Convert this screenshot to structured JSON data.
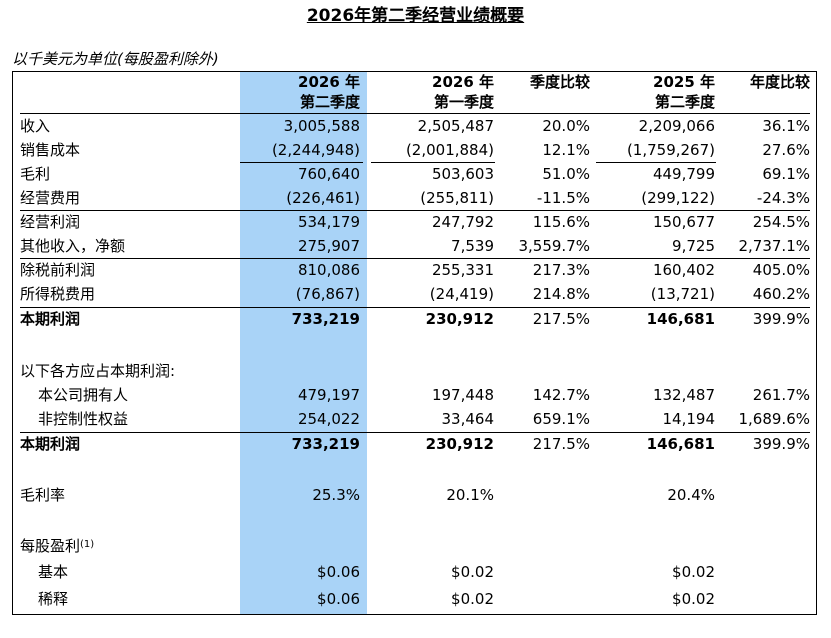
{
  "title": "2026年第二季经营业绩概要",
  "unit_note": "以千美元为单位(每股盈利除外)",
  "columns": [
    {
      "line1": "2026 年",
      "line2": "第二季度"
    },
    {
      "line1": "2026 年",
      "line2": "第一季度"
    },
    {
      "line1": "季度比较",
      "line2": ""
    },
    {
      "line1": "2025 年",
      "line2": "第二季度"
    },
    {
      "line1": "年度比较",
      "line2": ""
    }
  ],
  "rows": [
    {
      "label": "收入",
      "values": [
        "3,005,588",
        "2,505,487",
        "20.0%",
        "2,209,066",
        "36.1%"
      ]
    },
    {
      "label": "销售成本",
      "values": [
        "(2,244,948)",
        "(2,001,884)",
        "12.1%",
        "(1,759,267)",
        "27.6%"
      ]
    },
    {
      "label": "毛利",
      "values": [
        "760,640",
        "503,603",
        "51.0%",
        "449,799",
        "69.1%"
      ]
    },
    {
      "label": "经营费用",
      "values": [
        "(226,461)",
        "(255,811)",
        "-11.5%",
        "(299,122)",
        "-24.3%"
      ]
    },
    {
      "label": "经营利润",
      "values": [
        "534,179",
        "247,792",
        "115.6%",
        "150,677",
        "254.5%"
      ]
    },
    {
      "label": "其他收入，净额",
      "values": [
        "275,907",
        "7,539",
        "3,559.7%",
        "9,725",
        "2,737.1%"
      ]
    },
    {
      "label": "除税前利润",
      "values": [
        "810,086",
        "255,331",
        "217.3%",
        "160,402",
        "405.0%"
      ]
    },
    {
      "label": "所得税费用",
      "values": [
        "(76,867)",
        "(24,419)",
        "214.8%",
        "(13,721)",
        "460.2%"
      ]
    },
    {
      "label": "本期利润",
      "values": [
        "733,219",
        "230,912",
        "217.5%",
        "146,681",
        "399.9%"
      ]
    }
  ],
  "attrib_header": "以下各方应占本期利润:",
  "attrib_rows": [
    {
      "label": "本公司拥有人",
      "values": [
        "479,197",
        "197,448",
        "142.7%",
        "132,487",
        "261.7%"
      ]
    },
    {
      "label": "非控制性权益",
      "values": [
        "254,022",
        "33,464",
        "659.1%",
        "14,194",
        "1,689.6%"
      ]
    },
    {
      "label": "本期利润",
      "values": [
        "733,219",
        "230,912",
        "217.5%",
        "146,681",
        "399.9%"
      ]
    }
  ],
  "gross_margin": {
    "label": "毛利率",
    "values": [
      "25.3%",
      "20.1%",
      "20.4%"
    ]
  },
  "eps": {
    "label": "每股盈利",
    "footnote": "(1)",
    "rows": [
      {
        "label": "基本",
        "values": [
          "$0.06",
          "$0.02",
          "$0.02"
        ]
      },
      {
        "label": "稀释",
        "values": [
          "$0.06",
          "$0.02",
          "$0.02"
        ]
      }
    ]
  },
  "colors": {
    "highlight": "#a9d3f7",
    "text": "#000000"
  }
}
